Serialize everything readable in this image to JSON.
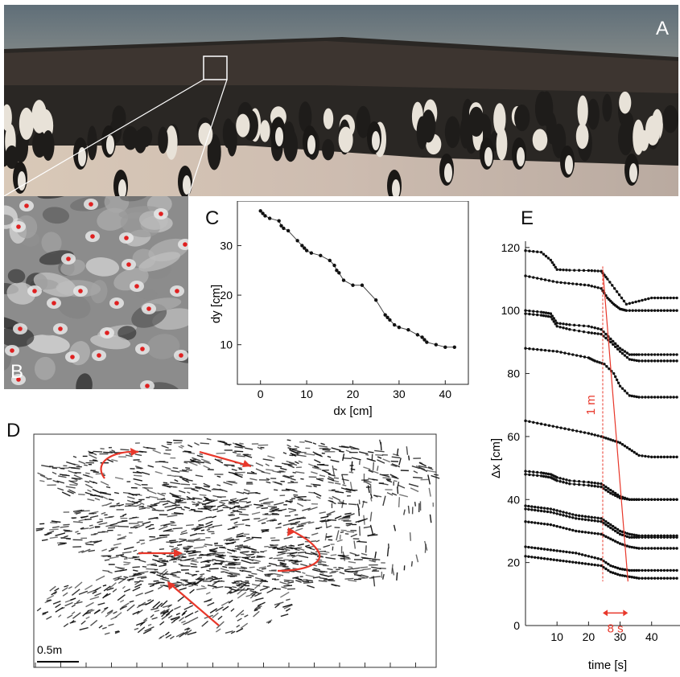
{
  "panel_labels": {
    "A": "A",
    "B": "B",
    "C": "C",
    "D": "D",
    "E": "E"
  },
  "colors": {
    "marker": "#e02020",
    "annotation": "#e8372a",
    "trace": "#111111"
  },
  "chart_data": [
    {
      "panel": "C",
      "type": "scatter",
      "xlabel": "dx [cm]",
      "ylabel": "dy [cm]",
      "xlim": [
        -5,
        45
      ],
      "ylim": [
        2,
        39
      ],
      "xticks": [
        0,
        10,
        20,
        30,
        40
      ],
      "yticks": [
        10,
        20,
        30
      ],
      "series": [
        {
          "x": [
            0,
            0.5,
            1,
            2,
            4,
            4.5,
            5,
            6,
            8,
            9,
            9.5,
            10,
            11,
            13,
            15,
            16,
            16.5,
            17,
            18,
            20,
            22,
            25,
            27,
            27.5,
            28,
            29,
            30,
            32,
            34,
            35,
            35.5,
            36,
            38,
            40,
            42
          ],
          "y": [
            37,
            36.5,
            36,
            35.5,
            35,
            34,
            33.5,
            33,
            31,
            30,
            29.5,
            29,
            28.5,
            28,
            27,
            26,
            25,
            24.5,
            23,
            22,
            22,
            19,
            16,
            15.5,
            15,
            14,
            13.5,
            13,
            12,
            11.5,
            11,
            10.5,
            10,
            9.5,
            9.5
          ]
        }
      ]
    },
    {
      "panel": "E",
      "type": "line",
      "xlabel": "time [s]",
      "ylabel": "Δx [cm]",
      "xlim": [
        0,
        49
      ],
      "ylim": [
        0,
        122
      ],
      "xticks": [
        10,
        20,
        30,
        40
      ],
      "yticks": [
        0,
        20,
        40,
        60,
        80,
        100,
        120
      ],
      "series": [
        {
          "x": [
            0,
            5,
            8,
            10,
            14,
            20,
            24,
            26,
            29,
            32,
            36,
            40,
            44,
            48
          ],
          "y": [
            119,
            118.5,
            116,
            113,
            112.8,
            112.7,
            112.5,
            110,
            106,
            102,
            103,
            104,
            104,
            104
          ]
        },
        {
          "x": [
            0,
            5,
            10,
            15,
            20,
            24,
            26,
            28,
            30,
            32,
            36,
            40,
            44,
            48
          ],
          "y": [
            111,
            110,
            109,
            108.5,
            108,
            107,
            104,
            102,
            100.5,
            100,
            100,
            100,
            100,
            100
          ]
        },
        {
          "x": [
            0,
            5,
            8,
            10,
            14,
            20,
            24,
            27,
            30,
            33,
            36,
            40,
            44,
            48
          ],
          "y": [
            100,
            99.5,
            99,
            96,
            95.5,
            95,
            94,
            91,
            88,
            86,
            86,
            86,
            86,
            86
          ]
        },
        {
          "x": [
            0,
            5,
            8,
            10,
            14,
            20,
            24,
            27,
            30,
            33,
            36,
            40,
            44,
            48
          ],
          "y": [
            99,
            98.5,
            98,
            95,
            94,
            93,
            92.5,
            90,
            87,
            84.5,
            84,
            84,
            84,
            84
          ]
        },
        {
          "x": [
            0,
            5,
            10,
            15,
            20,
            22,
            25,
            28,
            30,
            33,
            36,
            40,
            44,
            48
          ],
          "y": [
            88,
            87.5,
            87,
            86,
            85,
            84,
            83,
            80,
            76,
            73,
            72.5,
            72.5,
            72.5,
            72.5
          ]
        },
        {
          "x": [
            0,
            5,
            10,
            15,
            20,
            24,
            27,
            30,
            33,
            36,
            40,
            44,
            48
          ],
          "y": [
            65,
            64,
            63,
            62,
            61,
            60,
            59,
            58,
            56,
            54,
            53.5,
            53.5,
            53.5
          ]
        },
        {
          "x": [
            0,
            5,
            8,
            10,
            14,
            20,
            24,
            27,
            30,
            33,
            36,
            40,
            44,
            48
          ],
          "y": [
            49,
            48.5,
            48,
            47,
            46,
            45.5,
            45,
            43,
            41,
            40,
            40,
            40,
            40,
            40
          ]
        },
        {
          "x": [
            0,
            5,
            8,
            10,
            14,
            20,
            24,
            27,
            30,
            33,
            36,
            40,
            44,
            48
          ],
          "y": [
            48,
            47.5,
            47,
            46,
            45,
            44.5,
            44,
            42,
            40.5,
            40,
            40,
            40,
            40,
            40
          ]
        },
        {
          "x": [
            0,
            4,
            8,
            12,
            16,
            20,
            24,
            27,
            30,
            33,
            36,
            40,
            44,
            48
          ],
          "y": [
            38,
            37.5,
            37,
            36,
            35,
            34.5,
            34,
            32,
            30,
            29,
            28.5,
            28.5,
            28.5,
            28.5
          ]
        },
        {
          "x": [
            0,
            4,
            8,
            12,
            16,
            20,
            24,
            27,
            30,
            33,
            36,
            40,
            44,
            48
          ],
          "y": [
            37,
            36.5,
            36,
            35,
            34,
            33.5,
            33,
            31,
            29,
            28,
            28,
            28,
            28,
            28
          ]
        },
        {
          "x": [
            0,
            4,
            8,
            12,
            16,
            20,
            24,
            27,
            30,
            33,
            36,
            40,
            44,
            48
          ],
          "y": [
            33,
            32.5,
            32,
            31,
            30,
            29.5,
            29,
            27.5,
            26,
            25,
            24.5,
            24.5,
            24.5,
            24.5
          ]
        },
        {
          "x": [
            0,
            4,
            8,
            12,
            16,
            20,
            24,
            27,
            30,
            33,
            36,
            40,
            44,
            48
          ],
          "y": [
            25,
            24.5,
            24,
            23.5,
            23,
            22,
            21,
            19,
            18,
            17.5,
            17.5,
            17.5,
            17.5,
            17.5
          ]
        },
        {
          "x": [
            0,
            4,
            8,
            12,
            16,
            20,
            24,
            27,
            30,
            33,
            36,
            40,
            44,
            48
          ],
          "y": [
            22,
            21.5,
            21,
            20.5,
            20,
            19.5,
            19,
            17,
            16,
            15.5,
            15,
            15,
            15,
            15
          ]
        }
      ],
      "annotations": {
        "distance_label": "1 m",
        "time_label": "8 s"
      }
    },
    {
      "panel": "D",
      "type": "scatter",
      "scale_bar_label": "0.5m"
    }
  ]
}
